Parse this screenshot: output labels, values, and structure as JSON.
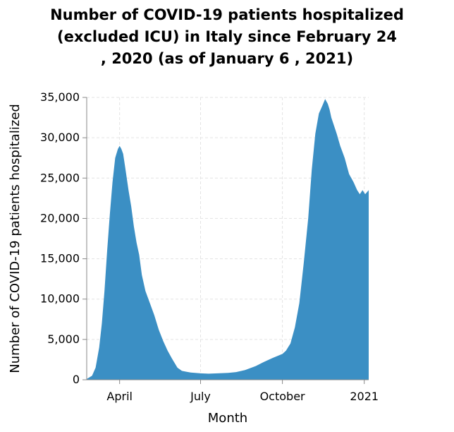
{
  "chart_data": {
    "type": "area",
    "title_lines": [
      "Number of COVID-19 patients hospitalized",
      "(excluded ICU) in Italy since February 24",
      ", 2020 (as of January 6 , 2021)"
    ],
    "xlabel": "Month",
    "ylabel": "Number of COVID-19 patients hospitalized",
    "x_unit": "date",
    "x_range": [
      "2020-02-24",
      "2021-01-06"
    ],
    "ylim": [
      0,
      35000
    ],
    "yticks": [
      0,
      5000,
      10000,
      15000,
      20000,
      25000,
      30000,
      35000
    ],
    "ytick_labels": [
      "0",
      "5,000",
      "10,000",
      "15,000",
      "20,000",
      "25,000",
      "30,000",
      "35,000"
    ],
    "xticks": [
      {
        "date": "2020-04-01",
        "label": "April"
      },
      {
        "date": "2020-07-01",
        "label": "July"
      },
      {
        "date": "2020-10-01",
        "label": "October"
      },
      {
        "date": "2021-01-01",
        "label": "2021"
      }
    ],
    "grid": true,
    "fill_color": "#3b8fc4",
    "series": [
      {
        "x": [
          "2020-02-24",
          "2020-03-01",
          "2020-03-05",
          "2020-03-09",
          "2020-03-12",
          "2020-03-15",
          "2020-03-18",
          "2020-03-21",
          "2020-03-24",
          "2020-03-27",
          "2020-03-30",
          "2020-04-01",
          "2020-04-03",
          "2020-04-05",
          "2020-04-07",
          "2020-04-09",
          "2020-04-11",
          "2020-04-14",
          "2020-04-17",
          "2020-04-20",
          "2020-04-23",
          "2020-04-26",
          "2020-04-30",
          "2020-05-05",
          "2020-05-10",
          "2020-05-15",
          "2020-05-20",
          "2020-05-25",
          "2020-05-30",
          "2020-06-05",
          "2020-06-10",
          "2020-06-15",
          "2020-06-20",
          "2020-06-25",
          "2020-07-01",
          "2020-07-10",
          "2020-07-20",
          "2020-08-01",
          "2020-08-10",
          "2020-08-20",
          "2020-09-01",
          "2020-09-10",
          "2020-09-20",
          "2020-10-01",
          "2020-10-05",
          "2020-10-10",
          "2020-10-15",
          "2020-10-20",
          "2020-10-25",
          "2020-10-30",
          "2020-11-03",
          "2020-11-07",
          "2020-11-11",
          "2020-11-15",
          "2020-11-18",
          "2020-11-21",
          "2020-11-23",
          "2020-11-25",
          "2020-11-28",
          "2020-12-01",
          "2020-12-05",
          "2020-12-10",
          "2020-12-15",
          "2020-12-20",
          "2020-12-24",
          "2020-12-27",
          "2020-12-30",
          "2021-01-02",
          "2021-01-06"
        ],
        "y": [
          100,
          500,
          1500,
          4000,
          7000,
          11000,
          16000,
          20500,
          24500,
          27500,
          28600,
          29000,
          28600,
          28000,
          26500,
          25000,
          23500,
          21500,
          19000,
          17000,
          15500,
          13000,
          11000,
          9500,
          8000,
          6200,
          4800,
          3600,
          2600,
          1500,
          1100,
          1000,
          900,
          850,
          800,
          750,
          800,
          850,
          950,
          1200,
          1700,
          2200,
          2700,
          3200,
          3600,
          4500,
          6500,
          9500,
          14500,
          20000,
          26000,
          30500,
          33000,
          34000,
          34800,
          34200,
          33500,
          32500,
          31500,
          30500,
          29000,
          27500,
          25500,
          24500,
          23500,
          23000,
          23500,
          23000,
          23500
        ]
      }
    ]
  }
}
